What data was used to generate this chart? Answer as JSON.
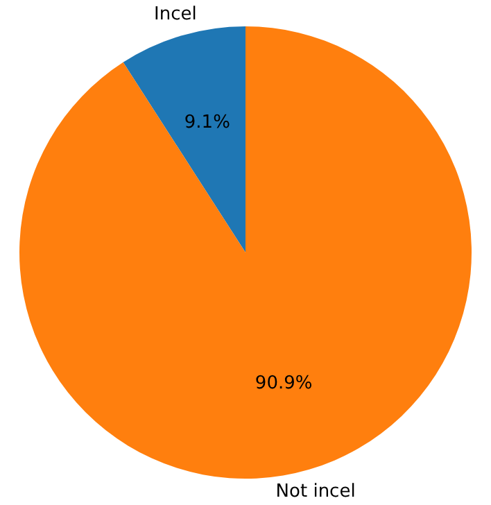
{
  "chart_data": {
    "type": "pie",
    "categories": [
      "Incel",
      "Not incel"
    ],
    "values": [
      9.1,
      90.9
    ],
    "value_labels": [
      "9.1%",
      "90.9%"
    ],
    "colors": [
      "#1f77b4",
      "#ff7f0e"
    ]
  }
}
